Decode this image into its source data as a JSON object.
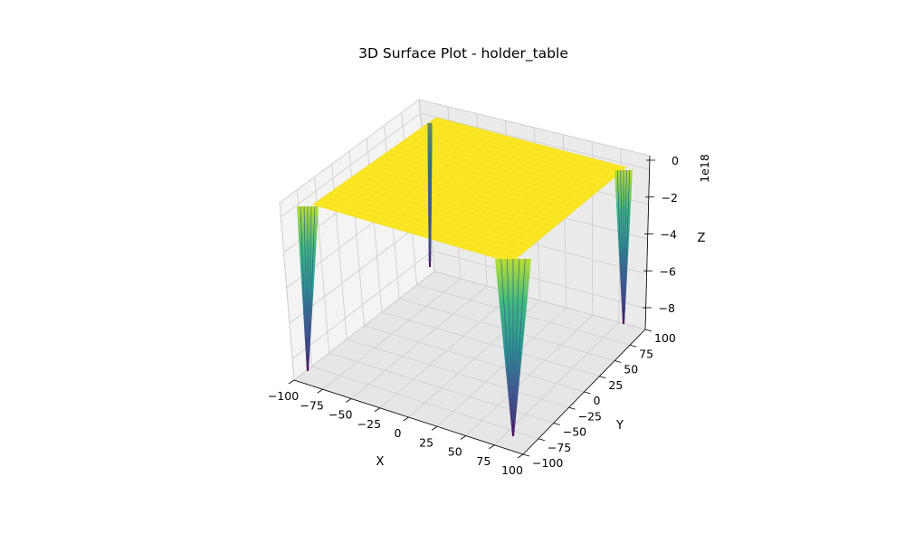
{
  "chart_data": {
    "type": "surface",
    "title": "3D Surface Plot - holder_table",
    "xlabel": "X",
    "ylabel": "Y",
    "zlabel": "Z",
    "z_offset_text": "1e18",
    "x_ticks": [
      "−100",
      "−75",
      "−50",
      "−25",
      "0",
      "25",
      "50",
      "75",
      "100"
    ],
    "y_ticks": [
      "−100",
      "−75",
      "−50",
      "−25",
      "0",
      "25",
      "50",
      "75",
      "100"
    ],
    "z_ticks": [
      "0",
      "−2",
      "−4",
      "−6",
      "−8"
    ],
    "xlim": [
      -100,
      100
    ],
    "ylim": [
      -100,
      100
    ],
    "zlim": [
      -9e+18,
      0
    ],
    "colormap": "viridis",
    "grid": true,
    "colors": {
      "high": "#fde725",
      "mid": "#21918c",
      "low": "#440154",
      "pane": "#f2f2f2",
      "grid": "#c8c8c8"
    }
  }
}
